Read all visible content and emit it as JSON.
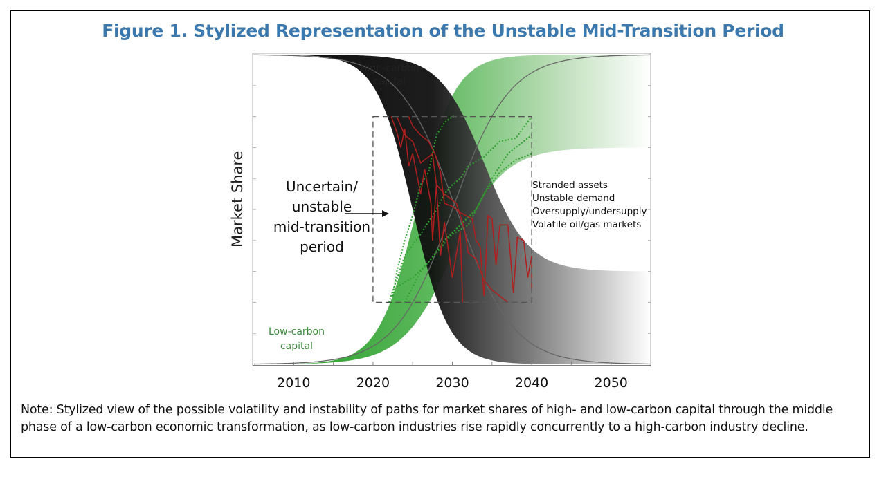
{
  "title": "Figure 1. Stylized Representation of the Unstable Mid-Transition Period",
  "note": "Note: Stylized view of the possible volatility and instability of paths for market shares of high- and low-carbon capital through the middle phase of a low-carbon economic transformation, as low-carbon industries rise rapidly concurrently to a high-carbon industry decline.",
  "colors": {
    "title": "#3a78ad",
    "red": "#b01e1e",
    "green": "#2ea12e",
    "label_green": "#3d8a3d"
  },
  "chart_data": {
    "type": "line",
    "ylabel": "Market Share",
    "xlabel": "",
    "xlim": [
      2005,
      2055
    ],
    "ylim": [
      0,
      1
    ],
    "xticks": [
      "2010",
      "2020",
      "2030",
      "2040",
      "2050"
    ],
    "xtick_values": [
      2010,
      2020,
      2030,
      2040,
      2050
    ],
    "labels": {
      "high_carbon": [
        "High-carbon",
        "capital"
      ],
      "low_carbon": [
        "Low-carbon",
        "capital"
      ],
      "period": [
        "Uncertain/",
        "unstable",
        "mid-transition",
        "period"
      ],
      "effects": [
        "Stranded assets",
        "Unstable demand",
        "Oversupply/undersupply",
        "Volatile oil/gas markets"
      ]
    },
    "period_box": {
      "x": [
        2020,
        2040
      ],
      "y": [
        0.2,
        0.8
      ]
    },
    "central_high": {
      "mid": 2030.5,
      "scale": 5
    },
    "central_low": {
      "mid": 2030,
      "scale": 5
    },
    "red_paths": [
      [
        [
          2022.3,
          0.8
        ],
        [
          2023,
          0.75
        ],
        [
          2023.5,
          0.7
        ],
        [
          2024,
          0.76
        ],
        [
          2024.5,
          0.64
        ],
        [
          2025,
          0.68
        ],
        [
          2026,
          0.55
        ],
        [
          2026.5,
          0.63
        ],
        [
          2027.3,
          0.52
        ],
        [
          2027.5,
          0.4
        ],
        [
          2028,
          0.58
        ],
        [
          2028.5,
          0.35
        ],
        [
          2029,
          0.46
        ],
        [
          2030,
          0.28
        ],
        [
          2031,
          0.43
        ],
        [
          2031.3,
          0.2
        ]
      ],
      [
        [
          2023,
          0.8
        ],
        [
          2024,
          0.74
        ],
        [
          2025,
          0.72
        ],
        [
          2026,
          0.65
        ],
        [
          2027.5,
          0.68
        ],
        [
          2028,
          0.58
        ],
        [
          2029,
          0.55
        ],
        [
          2030.5,
          0.52
        ],
        [
          2031.5,
          0.44
        ],
        [
          2032,
          0.36
        ],
        [
          2033,
          0.34
        ],
        [
          2034,
          0.27
        ],
        [
          2035,
          0.24
        ],
        [
          2036,
          0.22
        ],
        [
          2037,
          0.2
        ]
      ],
      [
        [
          2024.5,
          0.8
        ],
        [
          2025,
          0.77
        ],
        [
          2026,
          0.74
        ],
        [
          2027,
          0.72
        ],
        [
          2027.8,
          0.68
        ],
        [
          2028.5,
          0.62
        ],
        [
          2029,
          0.52
        ],
        [
          2030,
          0.51
        ],
        [
          2031,
          0.49
        ],
        [
          2032.5,
          0.47
        ],
        [
          2033,
          0.4
        ],
        [
          2033.5,
          0.38
        ],
        [
          2034,
          0.22
        ],
        [
          2034.5,
          0.48
        ],
        [
          2035,
          0.47
        ],
        [
          2035.5,
          0.32
        ],
        [
          2036,
          0.45
        ],
        [
          2037,
          0.45
        ],
        [
          2037.7,
          0.23
        ],
        [
          2038.2,
          0.41
        ],
        [
          2039,
          0.4
        ],
        [
          2039.5,
          0.28
        ],
        [
          2040,
          0.35
        ],
        [
          2040,
          0.24
        ]
      ]
    ],
    "green_paths": [
      [
        [
          2022.5,
          0.22
        ],
        [
          2023,
          0.3
        ],
        [
          2024,
          0.4
        ],
        [
          2025,
          0.48
        ],
        [
          2026,
          0.58
        ],
        [
          2027,
          0.62
        ],
        [
          2028,
          0.74
        ],
        [
          2029,
          0.78
        ],
        [
          2030,
          0.8
        ],
        [
          2030.5,
          0.8
        ]
      ],
      [
        [
          2022,
          0.2
        ],
        [
          2024,
          0.35
        ],
        [
          2026,
          0.42
        ],
        [
          2028,
          0.5
        ],
        [
          2029,
          0.55
        ],
        [
          2030,
          0.58
        ],
        [
          2031,
          0.6
        ],
        [
          2032,
          0.64
        ],
        [
          2034,
          0.67
        ],
        [
          2036,
          0.72
        ],
        [
          2038,
          0.73
        ],
        [
          2040,
          0.8
        ]
      ],
      [
        [
          2023,
          0.25
        ],
        [
          2025,
          0.28
        ],
        [
          2027,
          0.33
        ],
        [
          2029,
          0.4
        ],
        [
          2031,
          0.45
        ],
        [
          2033,
          0.5
        ],
        [
          2035,
          0.6
        ],
        [
          2037,
          0.68
        ],
        [
          2039,
          0.72
        ],
        [
          2040,
          0.74
        ]
      ],
      [
        [
          2024,
          0.2
        ],
        [
          2026,
          0.3
        ],
        [
          2028,
          0.36
        ],
        [
          2030,
          0.42
        ],
        [
          2032,
          0.45
        ],
        [
          2034,
          0.55
        ],
        [
          2036,
          0.62
        ],
        [
          2038,
          0.66
        ],
        [
          2040,
          0.68
        ]
      ]
    ]
  }
}
